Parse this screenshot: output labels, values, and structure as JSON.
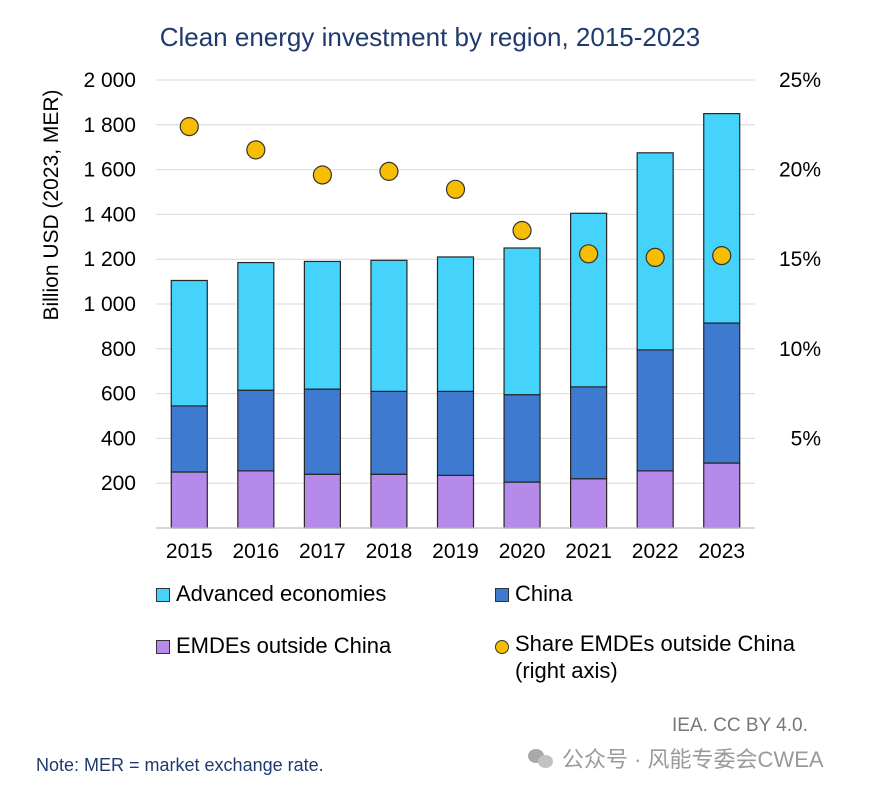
{
  "chart_data": {
    "type": "bar",
    "stacked": true,
    "title": "Clean energy investment by region, 2015-2023",
    "ylabel": "Billion USD (2023, MER)",
    "ylim": [
      0,
      2000
    ],
    "yticks": [
      "200",
      "400",
      "600",
      "800",
      "1 000",
      "1 200",
      "1 400",
      "1 600",
      "1 800",
      "2 000"
    ],
    "y2lim": [
      0,
      25
    ],
    "y2ticks": [
      "5%",
      "10%",
      "15%",
      "20%",
      "25%"
    ],
    "categories": [
      "2015",
      "2016",
      "2017",
      "2018",
      "2019",
      "2020",
      "2021",
      "2022",
      "2023"
    ],
    "series": [
      {
        "name": "EMDEs outside China",
        "color": "#b58aea",
        "values": [
          250,
          255,
          240,
          240,
          235,
          205,
          220,
          255,
          290
        ]
      },
      {
        "name": "China",
        "color": "#3f7ad1",
        "values": [
          295,
          360,
          380,
          370,
          375,
          390,
          410,
          540,
          625
        ]
      },
      {
        "name": "Advanced economies",
        "color": "#45d2fb",
        "values": [
          560,
          570,
          570,
          585,
          600,
          655,
          775,
          880,
          935
        ]
      }
    ],
    "line_series": {
      "name": "Share EMDEs outside China\n(right axis)",
      "color": "#f7bd00",
      "values": [
        22.4,
        21.1,
        19.7,
        19.9,
        18.9,
        16.6,
        15.3,
        15.1,
        15.2
      ]
    },
    "grid": true,
    "legend": "bottom"
  },
  "legend": {
    "advanced": "Advanced economies",
    "china": "China",
    "emdes": "EMDEs outside China",
    "share_line1": "Share EMDEs outside China",
    "share_line2": "(right axis)"
  },
  "credit": "IEA. CC BY 4.0.",
  "note": "Note: MER = market exchange rate.",
  "watermark": "公众号 · 风能专委会CWEA"
}
